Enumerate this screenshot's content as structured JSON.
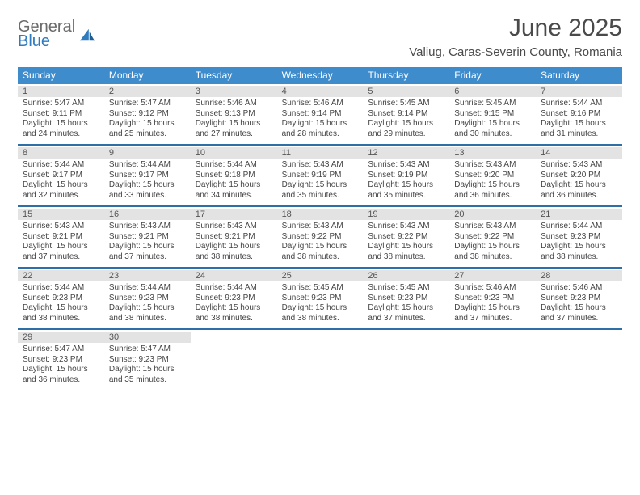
{
  "brand": {
    "word1": "General",
    "word2": "Blue"
  },
  "title": "June 2025",
  "location": "Valiug, Caras-Severin County, Romania",
  "colors": {
    "header_bg": "#3e8ccc",
    "row_divider": "#2f6fa8",
    "daynum_bg": "#e3e3e3",
    "text": "#444444",
    "brand_gray": "#6b6b6b",
    "brand_blue": "#2f7bbf"
  },
  "weekdays": [
    "Sunday",
    "Monday",
    "Tuesday",
    "Wednesday",
    "Thursday",
    "Friday",
    "Saturday"
  ],
  "weeks": [
    [
      {
        "n": "1",
        "sr": "Sunrise: 5:47 AM",
        "ss": "Sunset: 9:11 PM",
        "d1": "Daylight: 15 hours",
        "d2": "and 24 minutes."
      },
      {
        "n": "2",
        "sr": "Sunrise: 5:47 AM",
        "ss": "Sunset: 9:12 PM",
        "d1": "Daylight: 15 hours",
        "d2": "and 25 minutes."
      },
      {
        "n": "3",
        "sr": "Sunrise: 5:46 AM",
        "ss": "Sunset: 9:13 PM",
        "d1": "Daylight: 15 hours",
        "d2": "and 27 minutes."
      },
      {
        "n": "4",
        "sr": "Sunrise: 5:46 AM",
        "ss": "Sunset: 9:14 PM",
        "d1": "Daylight: 15 hours",
        "d2": "and 28 minutes."
      },
      {
        "n": "5",
        "sr": "Sunrise: 5:45 AM",
        "ss": "Sunset: 9:14 PM",
        "d1": "Daylight: 15 hours",
        "d2": "and 29 minutes."
      },
      {
        "n": "6",
        "sr": "Sunrise: 5:45 AM",
        "ss": "Sunset: 9:15 PM",
        "d1": "Daylight: 15 hours",
        "d2": "and 30 minutes."
      },
      {
        "n": "7",
        "sr": "Sunrise: 5:44 AM",
        "ss": "Sunset: 9:16 PM",
        "d1": "Daylight: 15 hours",
        "d2": "and 31 minutes."
      }
    ],
    [
      {
        "n": "8",
        "sr": "Sunrise: 5:44 AM",
        "ss": "Sunset: 9:17 PM",
        "d1": "Daylight: 15 hours",
        "d2": "and 32 minutes."
      },
      {
        "n": "9",
        "sr": "Sunrise: 5:44 AM",
        "ss": "Sunset: 9:17 PM",
        "d1": "Daylight: 15 hours",
        "d2": "and 33 minutes."
      },
      {
        "n": "10",
        "sr": "Sunrise: 5:44 AM",
        "ss": "Sunset: 9:18 PM",
        "d1": "Daylight: 15 hours",
        "d2": "and 34 minutes."
      },
      {
        "n": "11",
        "sr": "Sunrise: 5:43 AM",
        "ss": "Sunset: 9:19 PM",
        "d1": "Daylight: 15 hours",
        "d2": "and 35 minutes."
      },
      {
        "n": "12",
        "sr": "Sunrise: 5:43 AM",
        "ss": "Sunset: 9:19 PM",
        "d1": "Daylight: 15 hours",
        "d2": "and 35 minutes."
      },
      {
        "n": "13",
        "sr": "Sunrise: 5:43 AM",
        "ss": "Sunset: 9:20 PM",
        "d1": "Daylight: 15 hours",
        "d2": "and 36 minutes."
      },
      {
        "n": "14",
        "sr": "Sunrise: 5:43 AM",
        "ss": "Sunset: 9:20 PM",
        "d1": "Daylight: 15 hours",
        "d2": "and 36 minutes."
      }
    ],
    [
      {
        "n": "15",
        "sr": "Sunrise: 5:43 AM",
        "ss": "Sunset: 9:21 PM",
        "d1": "Daylight: 15 hours",
        "d2": "and 37 minutes."
      },
      {
        "n": "16",
        "sr": "Sunrise: 5:43 AM",
        "ss": "Sunset: 9:21 PM",
        "d1": "Daylight: 15 hours",
        "d2": "and 37 minutes."
      },
      {
        "n": "17",
        "sr": "Sunrise: 5:43 AM",
        "ss": "Sunset: 9:21 PM",
        "d1": "Daylight: 15 hours",
        "d2": "and 38 minutes."
      },
      {
        "n": "18",
        "sr": "Sunrise: 5:43 AM",
        "ss": "Sunset: 9:22 PM",
        "d1": "Daylight: 15 hours",
        "d2": "and 38 minutes."
      },
      {
        "n": "19",
        "sr": "Sunrise: 5:43 AM",
        "ss": "Sunset: 9:22 PM",
        "d1": "Daylight: 15 hours",
        "d2": "and 38 minutes."
      },
      {
        "n": "20",
        "sr": "Sunrise: 5:43 AM",
        "ss": "Sunset: 9:22 PM",
        "d1": "Daylight: 15 hours",
        "d2": "and 38 minutes."
      },
      {
        "n": "21",
        "sr": "Sunrise: 5:44 AM",
        "ss": "Sunset: 9:23 PM",
        "d1": "Daylight: 15 hours",
        "d2": "and 38 minutes."
      }
    ],
    [
      {
        "n": "22",
        "sr": "Sunrise: 5:44 AM",
        "ss": "Sunset: 9:23 PM",
        "d1": "Daylight: 15 hours",
        "d2": "and 38 minutes."
      },
      {
        "n": "23",
        "sr": "Sunrise: 5:44 AM",
        "ss": "Sunset: 9:23 PM",
        "d1": "Daylight: 15 hours",
        "d2": "and 38 minutes."
      },
      {
        "n": "24",
        "sr": "Sunrise: 5:44 AM",
        "ss": "Sunset: 9:23 PM",
        "d1": "Daylight: 15 hours",
        "d2": "and 38 minutes."
      },
      {
        "n": "25",
        "sr": "Sunrise: 5:45 AM",
        "ss": "Sunset: 9:23 PM",
        "d1": "Daylight: 15 hours",
        "d2": "and 38 minutes."
      },
      {
        "n": "26",
        "sr": "Sunrise: 5:45 AM",
        "ss": "Sunset: 9:23 PM",
        "d1": "Daylight: 15 hours",
        "d2": "and 37 minutes."
      },
      {
        "n": "27",
        "sr": "Sunrise: 5:46 AM",
        "ss": "Sunset: 9:23 PM",
        "d1": "Daylight: 15 hours",
        "d2": "and 37 minutes."
      },
      {
        "n": "28",
        "sr": "Sunrise: 5:46 AM",
        "ss": "Sunset: 9:23 PM",
        "d1": "Daylight: 15 hours",
        "d2": "and 37 minutes."
      }
    ],
    [
      {
        "n": "29",
        "sr": "Sunrise: 5:47 AM",
        "ss": "Sunset: 9:23 PM",
        "d1": "Daylight: 15 hours",
        "d2": "and 36 minutes."
      },
      {
        "n": "30",
        "sr": "Sunrise: 5:47 AM",
        "ss": "Sunset: 9:23 PM",
        "d1": "Daylight: 15 hours",
        "d2": "and 35 minutes."
      },
      null,
      null,
      null,
      null,
      null
    ]
  ]
}
